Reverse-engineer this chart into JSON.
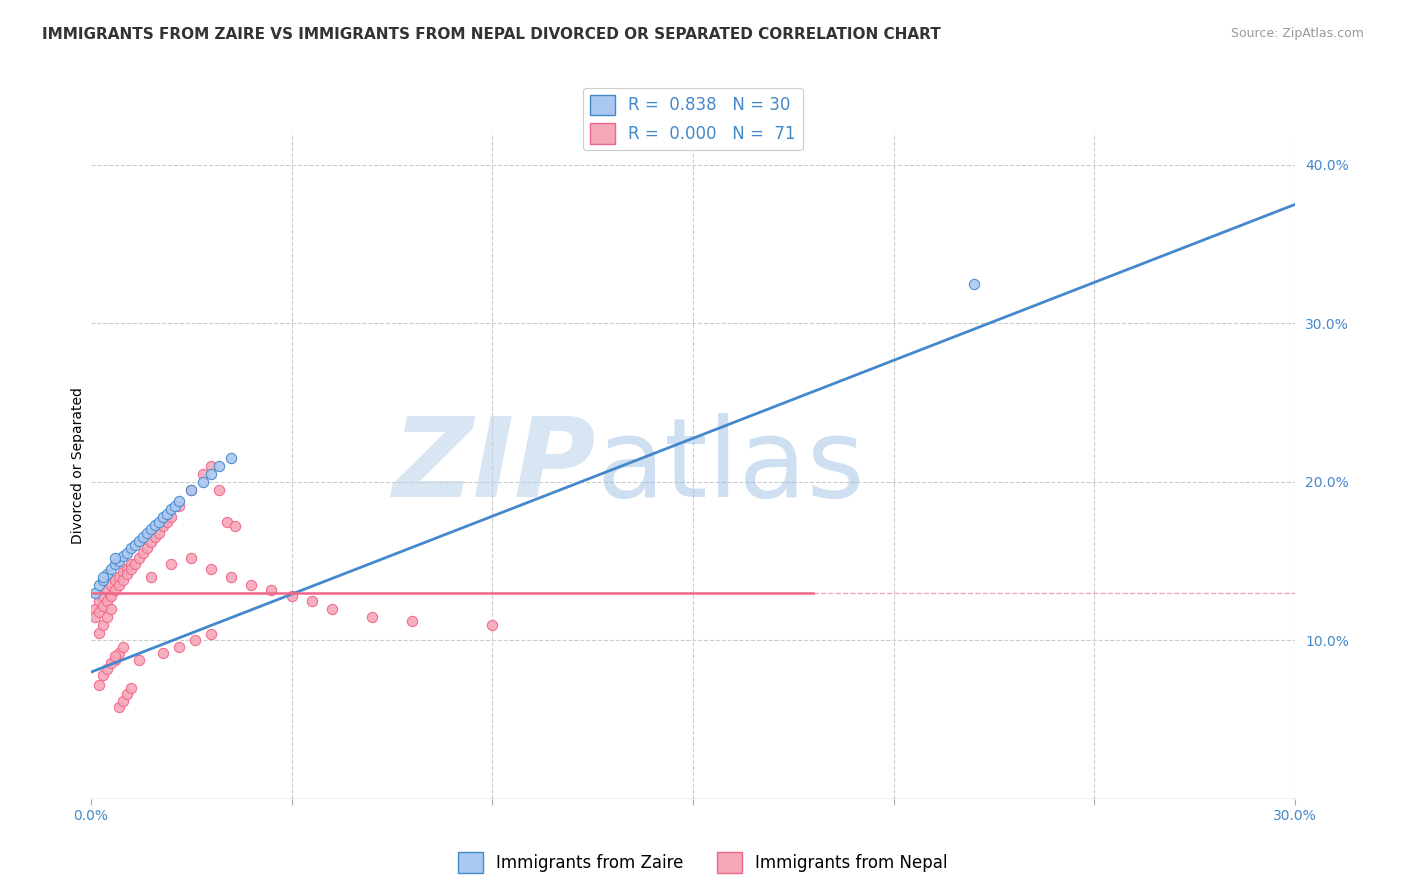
{
  "title": "IMMIGRANTS FROM ZAIRE VS IMMIGRANTS FROM NEPAL DIVORCED OR SEPARATED CORRELATION CHART",
  "source": "Source: ZipAtlas.com",
  "ylabel": "Divorced or Separated",
  "xlabel": "",
  "xlim": [
    0.0,
    0.3
  ],
  "ylim": [
    0.0,
    0.42
  ],
  "x_ticks": [
    0.0,
    0.05,
    0.1,
    0.15,
    0.2,
    0.25,
    0.3
  ],
  "y_ticks_right": [
    0.0,
    0.1,
    0.2,
    0.3,
    0.4
  ],
  "y_tick_labels_right": [
    "",
    "10.0%",
    "20.0%",
    "30.0%",
    "40.0%"
  ],
  "zaire_color": "#aac8f0",
  "nepal_color": "#f5a8b8",
  "zaire_line_color": "#4488cc",
  "nepal_line_color": "#ee6688",
  "legend_R_zaire": "0.838",
  "legend_N_zaire": "30",
  "legend_R_nepal": "0.000",
  "legend_N_nepal": "71",
  "watermark_zip": "ZIP",
  "watermark_atlas": "atlas",
  "background_color": "#ffffff",
  "grid_color": "#cccccc",
  "zaire_scatter_x": [
    0.001,
    0.002,
    0.003,
    0.004,
    0.005,
    0.006,
    0.007,
    0.008,
    0.009,
    0.01,
    0.011,
    0.012,
    0.013,
    0.014,
    0.015,
    0.016,
    0.017,
    0.018,
    0.019,
    0.02,
    0.021,
    0.022,
    0.025,
    0.03,
    0.035,
    0.028,
    0.032,
    0.22,
    0.003,
    0.006
  ],
  "zaire_scatter_y": [
    0.13,
    0.135,
    0.138,
    0.142,
    0.145,
    0.148,
    0.15,
    0.153,
    0.155,
    0.158,
    0.16,
    0.163,
    0.165,
    0.168,
    0.17,
    0.173,
    0.175,
    0.178,
    0.18,
    0.183,
    0.185,
    0.188,
    0.195,
    0.205,
    0.215,
    0.2,
    0.21,
    0.325,
    0.14,
    0.152
  ],
  "nepal_scatter_x": [
    0.001,
    0.002,
    0.003,
    0.004,
    0.005,
    0.006,
    0.007,
    0.008,
    0.009,
    0.01,
    0.001,
    0.002,
    0.003,
    0.004,
    0.005,
    0.006,
    0.007,
    0.008,
    0.009,
    0.01,
    0.011,
    0.012,
    0.013,
    0.014,
    0.015,
    0.016,
    0.017,
    0.018,
    0.019,
    0.02,
    0.022,
    0.025,
    0.028,
    0.03,
    0.032,
    0.034,
    0.036,
    0.015,
    0.02,
    0.025,
    0.03,
    0.035,
    0.04,
    0.045,
    0.05,
    0.055,
    0.06,
    0.07,
    0.08,
    0.1,
    0.012,
    0.018,
    0.022,
    0.026,
    0.03,
    0.002,
    0.003,
    0.004,
    0.005,
    0.006,
    0.007,
    0.008,
    0.002,
    0.003,
    0.004,
    0.005,
    0.006,
    0.007,
    0.008,
    0.009,
    0.01
  ],
  "nepal_scatter_y": [
    0.12,
    0.125,
    0.128,
    0.132,
    0.135,
    0.138,
    0.14,
    0.143,
    0.145,
    0.148,
    0.115,
    0.118,
    0.122,
    0.125,
    0.128,
    0.132,
    0.135,
    0.138,
    0.142,
    0.145,
    0.148,
    0.152,
    0.155,
    0.158,
    0.162,
    0.165,
    0.168,
    0.172,
    0.175,
    0.178,
    0.185,
    0.195,
    0.205,
    0.21,
    0.195,
    0.175,
    0.172,
    0.14,
    0.148,
    0.152,
    0.145,
    0.14,
    0.135,
    0.132,
    0.128,
    0.125,
    0.12,
    0.115,
    0.112,
    0.11,
    0.088,
    0.092,
    0.096,
    0.1,
    0.104,
    0.105,
    0.11,
    0.115,
    0.12,
    0.088,
    0.092,
    0.096,
    0.072,
    0.078,
    0.082,
    0.086,
    0.09,
    0.058,
    0.062,
    0.066,
    0.07
  ],
  "blue_line_x0": 0.0,
  "blue_line_y0": 0.08,
  "blue_line_x1": 0.3,
  "blue_line_y1": 0.375,
  "pink_line_y": 0.13,
  "pink_line_x0": 0.0,
  "pink_line_x1": 0.18,
  "title_fontsize": 11,
  "label_fontsize": 10,
  "tick_fontsize": 10,
  "legend_fontsize": 12
}
